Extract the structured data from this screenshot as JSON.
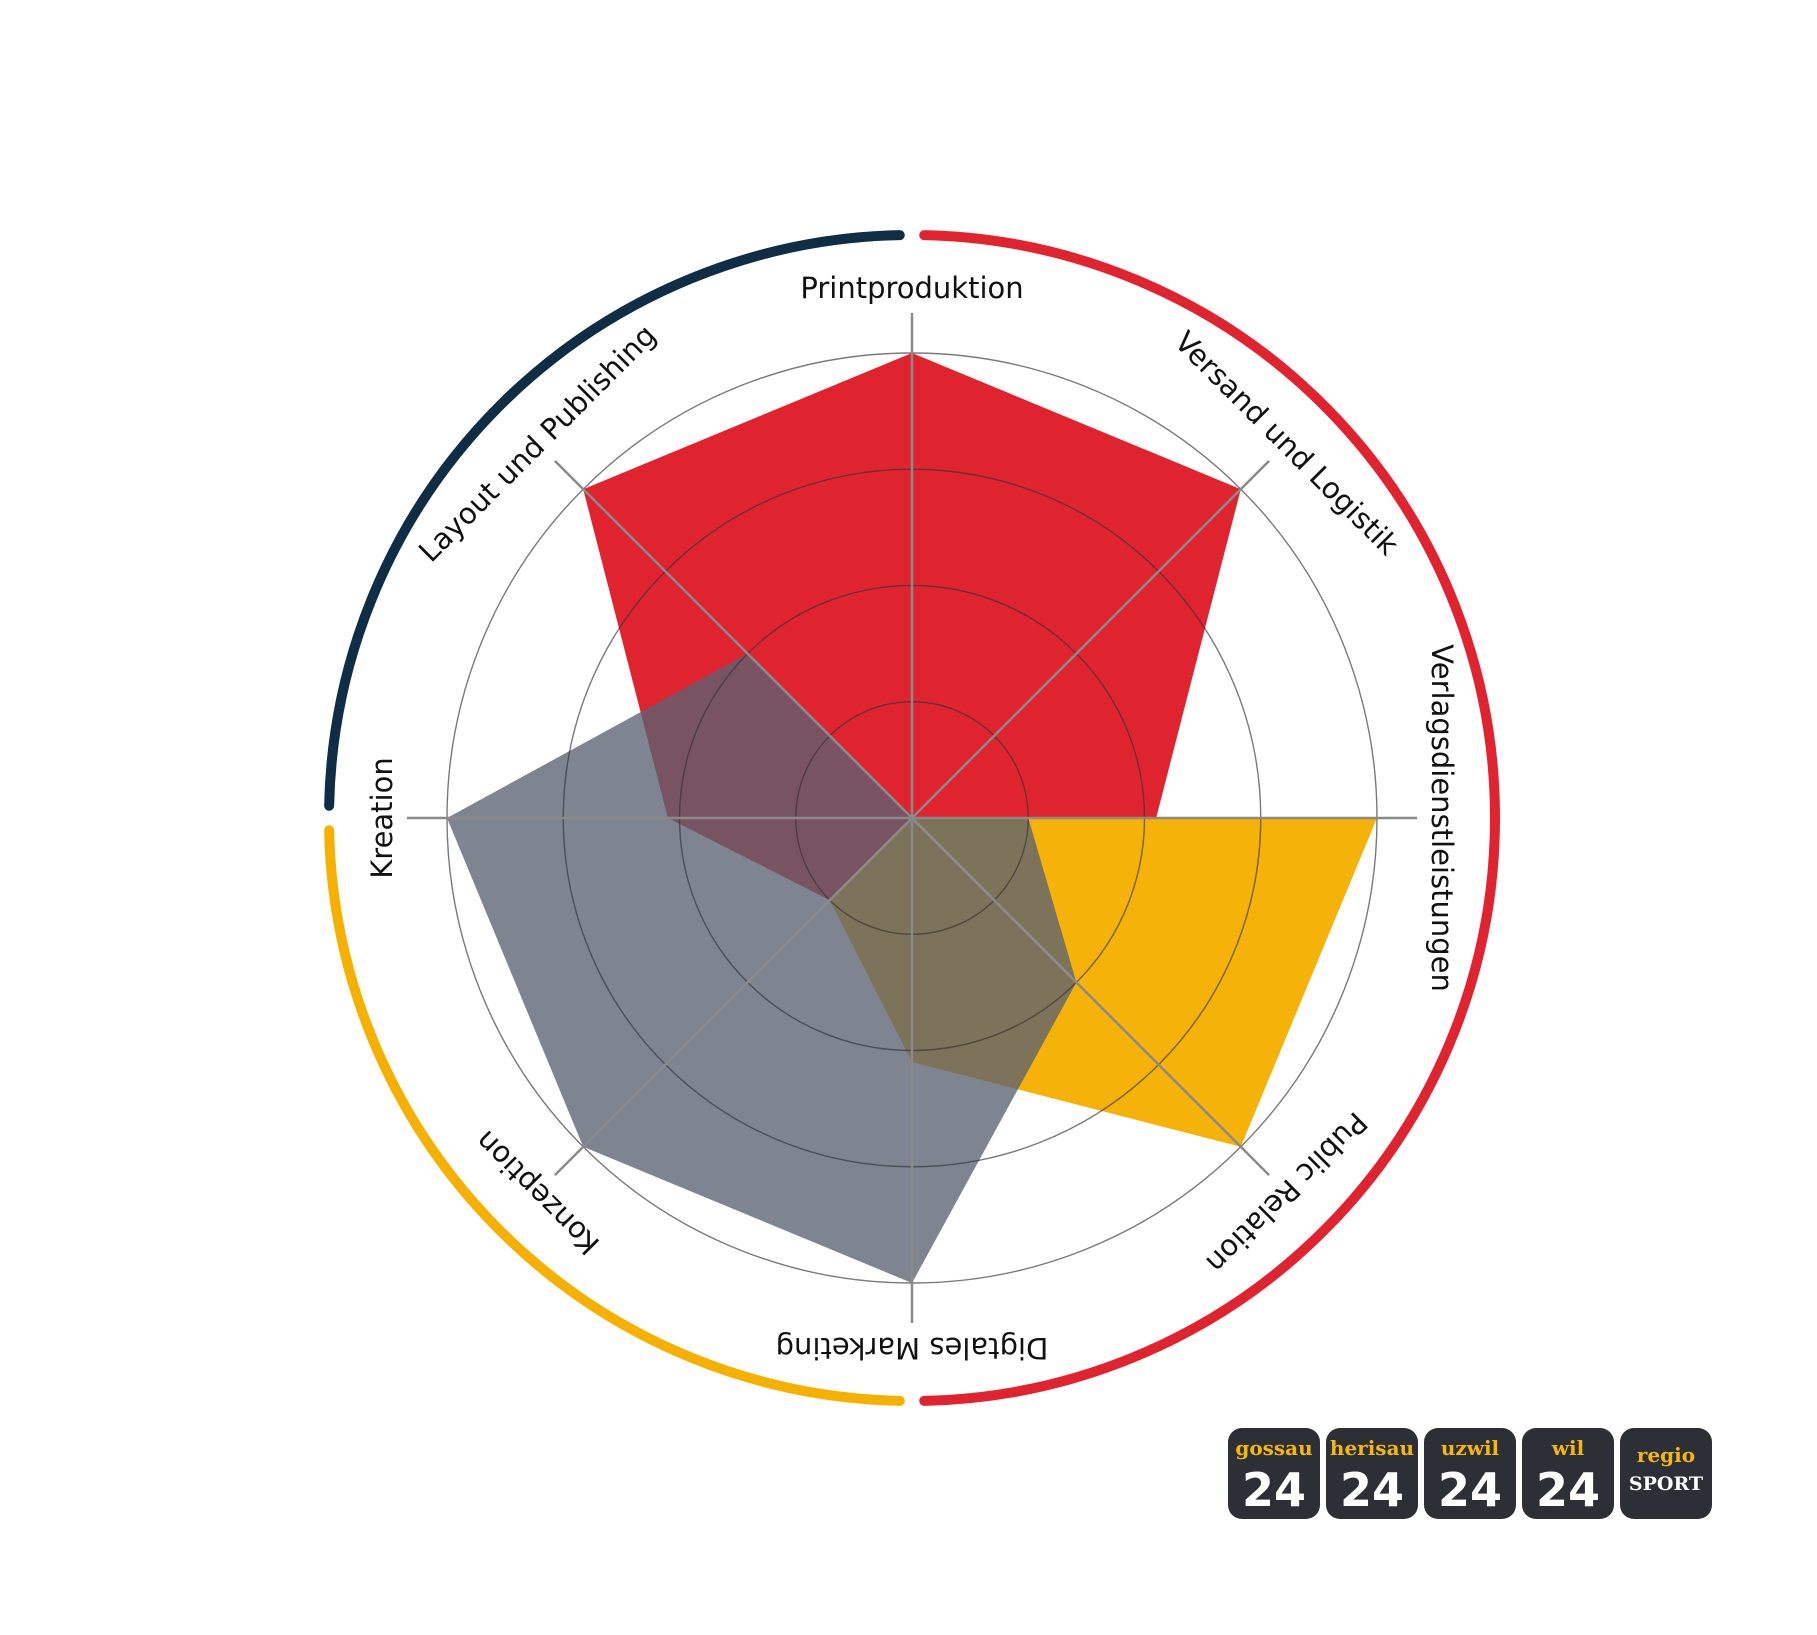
{
  "chart_data": {
    "type": "radar",
    "categories": [
      "Printproduktion",
      "Versand und Logistik",
      "Verlagsdienstleistungen",
      "Public Relation",
      "Digtales Marketing",
      "Konzeption",
      "Kreation",
      "Layout und Publishing"
    ],
    "rmax": 4,
    "rings": [
      1,
      2,
      3,
      4
    ],
    "series": [
      {
        "color": "#e0242f",
        "opacity": 1.0,
        "values": [
          4,
          4,
          2.1,
          0,
          0,
          1,
          2.1,
          4
        ]
      },
      {
        "color": "#f5b000",
        "opacity": 0.97,
        "values": [
          0,
          0,
          4,
          4,
          2.1,
          1,
          0,
          0
        ]
      },
      {
        "color": "#5b6172",
        "opacity": 0.78,
        "values": [
          0,
          0,
          1,
          2,
          4,
          4,
          4,
          2
        ]
      }
    ],
    "outer_arcs": [
      {
        "color": "#e0242f",
        "from_deg": -90,
        "to_deg": 90
      },
      {
        "color": "#f5b000",
        "from_deg": 90,
        "to_deg": 180
      },
      {
        "color": "#0f2d45",
        "from_deg": 180,
        "to_deg": 270
      }
    ]
  },
  "badges": [
    {
      "top": "gossau",
      "bottom": "24"
    },
    {
      "top": "herisau",
      "bottom": "24"
    },
    {
      "top": "uzwil",
      "bottom": "24"
    },
    {
      "top": "wil",
      "bottom": "24"
    },
    {
      "top": "regio",
      "bottom": "SPORT"
    }
  ]
}
